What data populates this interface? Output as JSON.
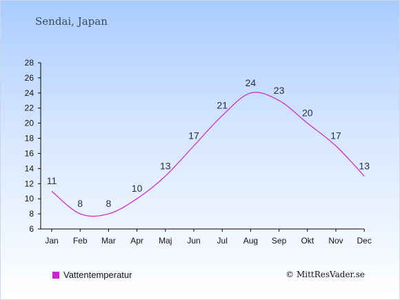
{
  "page": {
    "location": "Sendai, Japan",
    "copyright": "© MittResVader.se"
  },
  "colors": {
    "line": "#d11fd4",
    "text": "#1f2d4a",
    "axis": "#000000"
  },
  "chart_data": {
    "type": "line",
    "categories": [
      "Jan",
      "Feb",
      "Mar",
      "Apr",
      "Maj",
      "Jun",
      "Jul",
      "Aug",
      "Sep",
      "Okt",
      "Nov",
      "Dec"
    ],
    "series": [
      {
        "name": "Vattentemperatur",
        "values": [
          11,
          8,
          8,
          10,
          13,
          17,
          21,
          24,
          23,
          20,
          17,
          13
        ]
      }
    ],
    "ylim": [
      6,
      28
    ],
    "yticks": [
      6,
      8,
      10,
      12,
      14,
      16,
      18,
      20,
      22,
      24,
      26,
      28
    ],
    "grid": false,
    "legend": "bottom-left"
  }
}
